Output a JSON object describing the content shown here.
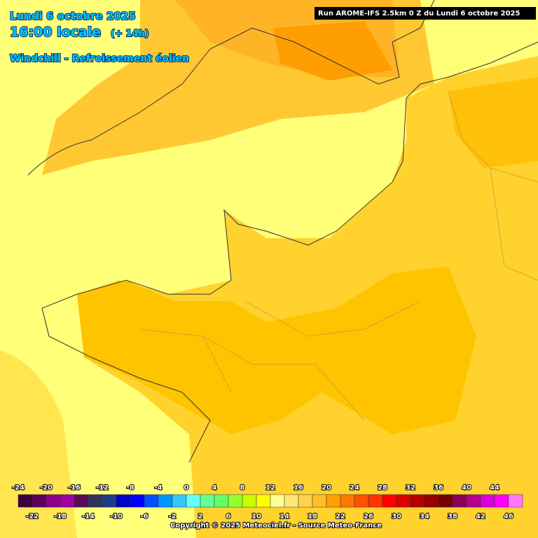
{
  "header": {
    "date": "Lundi 6 octobre 2025",
    "time": "16:00 locale",
    "lead": "(+ 14h)",
    "parameter": "Windchill - Refroissement éolien",
    "run": "Run AROME-IFS 2.5km 0 Z du Lundi 6 octobre 2025"
  },
  "legend": {
    "values": [
      -24,
      -22,
      -20,
      -18,
      -16,
      -14,
      -12,
      -10,
      -8,
      -6,
      -4,
      -2,
      0,
      2,
      4,
      6,
      8,
      10,
      12,
      14,
      16,
      18,
      20,
      22,
      24,
      26,
      28,
      30,
      32,
      34,
      36,
      38,
      40,
      42,
      44,
      46
    ],
    "colors": [
      "#3c003c",
      "#5a005a",
      "#8c008c",
      "#a000a0",
      "#5a0a5a",
      "#32325a",
      "#1e3c8c",
      "#0000c8",
      "#0000ff",
      "#0050ff",
      "#0096ff",
      "#32c8ff",
      "#64ffff",
      "#64ff96",
      "#64ff64",
      "#96ff32",
      "#c8ff00",
      "#ffff00",
      "#ffff96",
      "#ffe678",
      "#ffd250",
      "#ffbe28",
      "#ffa000",
      "#ff7800",
      "#ff5000",
      "#ff3200",
      "#ff0000",
      "#dc0000",
      "#b40000",
      "#960000",
      "#780000",
      "#8c005a",
      "#b4008c",
      "#dc00dc",
      "#ff00ff",
      "#ff78ff"
    ]
  },
  "footer": {
    "copyright": "Copyright © 2025 Meteociel.fr - Source Meteo-France"
  }
}
